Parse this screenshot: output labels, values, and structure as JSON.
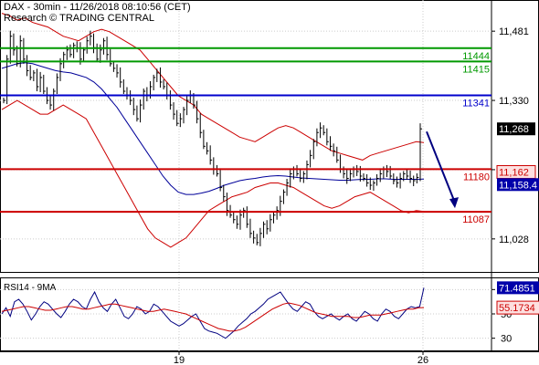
{
  "header": {
    "line1": "DAX - 30min - 11/26/2018 08:10:56 (CET)",
    "line2": "Research © TRADING CENTRAL"
  },
  "rsi_title": "RSI14 - 9MA",
  "colors": {
    "price": "#000000",
    "bollinger": "#cc0000",
    "ma": "#000099",
    "resistance_green": "#009900",
    "blue_level": "#0000cc",
    "support_red": "#cc0000",
    "arrow": "#000080",
    "rsi": "#000080",
    "rsi_ma": "#cc0000"
  },
  "chart_data": [
    {
      "type": "line",
      "title": "DAX - 30min",
      "price_axis": {
        "ylim": [
          10960,
          11545
        ],
        "ticks": [
          11481,
          11330,
          11179,
          11028
        ]
      },
      "x_ticks": [
        "19",
        "26"
      ],
      "horizontal_levels": [
        {
          "value": 11444,
          "label": "11444",
          "color": "#009900"
        },
        {
          "value": 11415,
          "label": "11415",
          "color": "#009900"
        },
        {
          "value": 11341,
          "label": "11341",
          "color": "#0000cc"
        },
        {
          "value": 11180,
          "label": "11180",
          "color": "#cc0000"
        },
        {
          "value": 11087,
          "label": "11087",
          "color": "#cc0000"
        }
      ],
      "value_badges": [
        {
          "value": 11268,
          "label": "11,268",
          "style": "black"
        },
        {
          "value": 11162,
          "label": "11,162",
          "style": "red"
        },
        {
          "value": 11158.4,
          "label": "11,158.4",
          "style": "blue"
        }
      ],
      "forecast_arrow": {
        "from": 11262,
        "to": 11095
      },
      "series": [
        {
          "name": "Close",
          "values": [
            11330,
            11420,
            11470,
            11440,
            11410,
            11460,
            11420,
            11395,
            11380,
            11390,
            11360,
            11380,
            11350,
            11330,
            11320,
            11350,
            11380,
            11410,
            11430,
            11440,
            11430,
            11450,
            11445,
            11420,
            11440,
            11460,
            11470,
            11445,
            11420,
            11440,
            11460,
            11430,
            11410,
            11400,
            11390,
            11370,
            11350,
            11340,
            11330,
            11310,
            11290,
            11320,
            11350,
            11340,
            11360,
            11380,
            11390,
            11370,
            11360,
            11340,
            11320,
            11300,
            11280,
            11290,
            11310,
            11330,
            11340,
            11320,
            11290,
            11260,
            11230,
            11220,
            11200,
            11180,
            11170,
            11140,
            11120,
            11090,
            11080,
            11070,
            11060,
            11080,
            11090,
            11060,
            11040,
            11030,
            11020,
            11040,
            11060,
            11050,
            11070,
            11080,
            11090,
            11110,
            11130,
            11150,
            11170,
            11180,
            11170,
            11160,
            11170,
            11190,
            11210,
            11240,
            11260,
            11270,
            11260,
            11240,
            11230,
            11220,
            11200,
            11180,
            11170,
            11160,
            11170,
            11180,
            11175,
            11165,
            11160,
            11150,
            11145,
            11150,
            11160,
            11170,
            11180,
            11175,
            11165,
            11155,
            11150,
            11160,
            11170,
            11165,
            11160,
            11155,
            11162,
            11268
          ]
        },
        {
          "name": "Bollinger upper",
          "values": [
            11520,
            11515,
            11505,
            11510,
            11500,
            11495,
            11490,
            11480,
            11470,
            11465,
            11460,
            11470,
            11480,
            11485,
            11480,
            11470,
            11460,
            11450,
            11440,
            11420,
            11400,
            11380,
            11360,
            11340,
            11330,
            11320,
            11300,
            11290,
            11280,
            11270,
            11260,
            11250,
            11245,
            11240,
            11250,
            11260,
            11270,
            11275,
            11270,
            11260,
            11250,
            11240,
            11230,
            11220,
            11215,
            11210,
            11205,
            11200,
            11210,
            11215,
            11220,
            11225,
            11230,
            11235,
            11240,
            11238
          ]
        },
        {
          "name": "Bollinger lower",
          "values": [
            11310,
            11320,
            11330,
            11320,
            11310,
            11300,
            11300,
            11310,
            11320,
            11310,
            11300,
            11290,
            11260,
            11230,
            11200,
            11170,
            11140,
            11110,
            11080,
            11050,
            11030,
            11020,
            11010,
            11020,
            11030,
            11050,
            11070,
            11090,
            11100,
            11110,
            11120,
            11125,
            11130,
            11140,
            11145,
            11150,
            11150,
            11145,
            11140,
            11130,
            11120,
            11110,
            11100,
            11095,
            11100,
            11110,
            11120,
            11125,
            11130,
            11120,
            11110,
            11100,
            11090,
            11085,
            11090,
            11088
          ]
        },
        {
          "name": "Moving average",
          "values": [
            11400,
            11405,
            11410,
            11412,
            11410,
            11405,
            11400,
            11395,
            11392,
            11390,
            11385,
            11380,
            11370,
            11355,
            11335,
            11315,
            11290,
            11265,
            11240,
            11215,
            11190,
            11165,
            11145,
            11130,
            11125,
            11125,
            11128,
            11132,
            11138,
            11145,
            11150,
            11155,
            11158,
            11160,
            11163,
            11165,
            11166,
            11165,
            11163,
            11161,
            11160,
            11159,
            11158,
            11157,
            11156,
            11156,
            11157,
            11158,
            11158,
            11159,
            11159,
            11158,
            11158,
            11158,
            11158,
            11158.4
          ]
        }
      ]
    },
    {
      "type": "line",
      "title": "RSI14 - 9MA",
      "ylim": [
        20,
        80
      ],
      "y_ticks": [
        70,
        50,
        30
      ],
      "value_badges": [
        {
          "value": 71.4851,
          "label": "71.4851",
          "style": "blue"
        },
        {
          "value": 55.1734,
          "label": "55.1734",
          "style": "red"
        }
      ],
      "series": [
        {
          "name": "RSI14",
          "values": [
            50,
            55,
            48,
            60,
            62,
            58,
            52,
            45,
            50,
            56,
            60,
            58,
            54,
            50,
            47,
            52,
            58,
            62,
            60,
            56,
            54,
            62,
            68,
            60,
            55,
            52,
            58,
            62,
            55,
            48,
            46,
            50,
            56,
            54,
            50,
            52,
            58,
            56,
            52,
            48,
            44,
            42,
            40,
            42,
            45,
            48,
            50,
            44,
            38,
            36,
            35,
            34,
            32,
            30,
            33,
            36,
            40,
            43,
            46,
            50,
            52,
            55,
            58,
            62,
            64,
            66,
            68,
            63,
            58,
            54,
            52,
            56,
            60,
            58,
            52,
            48,
            46,
            48,
            50,
            47,
            45,
            48,
            50,
            46,
            44,
            48,
            52,
            50,
            46,
            44,
            50,
            54,
            52,
            48,
            46,
            50,
            54,
            56,
            55,
            56,
            71.4851
          ]
        },
        {
          "name": "9MA",
          "values": [
            52,
            53,
            54,
            55,
            56,
            56,
            55,
            54,
            53,
            53,
            54,
            55,
            56,
            56,
            55,
            54,
            54,
            55,
            56,
            57,
            58,
            58,
            57,
            56,
            55,
            54,
            53,
            52,
            52,
            53,
            54,
            53,
            52,
            51,
            50,
            48,
            46,
            44,
            42,
            40,
            38,
            37,
            36,
            36,
            37,
            39,
            42,
            45,
            48,
            51,
            54,
            56,
            58,
            59,
            58,
            57,
            55,
            53,
            51,
            50,
            49,
            48,
            48,
            48,
            48,
            47,
            47,
            48,
            49,
            49,
            49,
            50,
            51,
            52,
            53,
            54,
            54,
            55,
            55.1734
          ]
        }
      ]
    }
  ]
}
